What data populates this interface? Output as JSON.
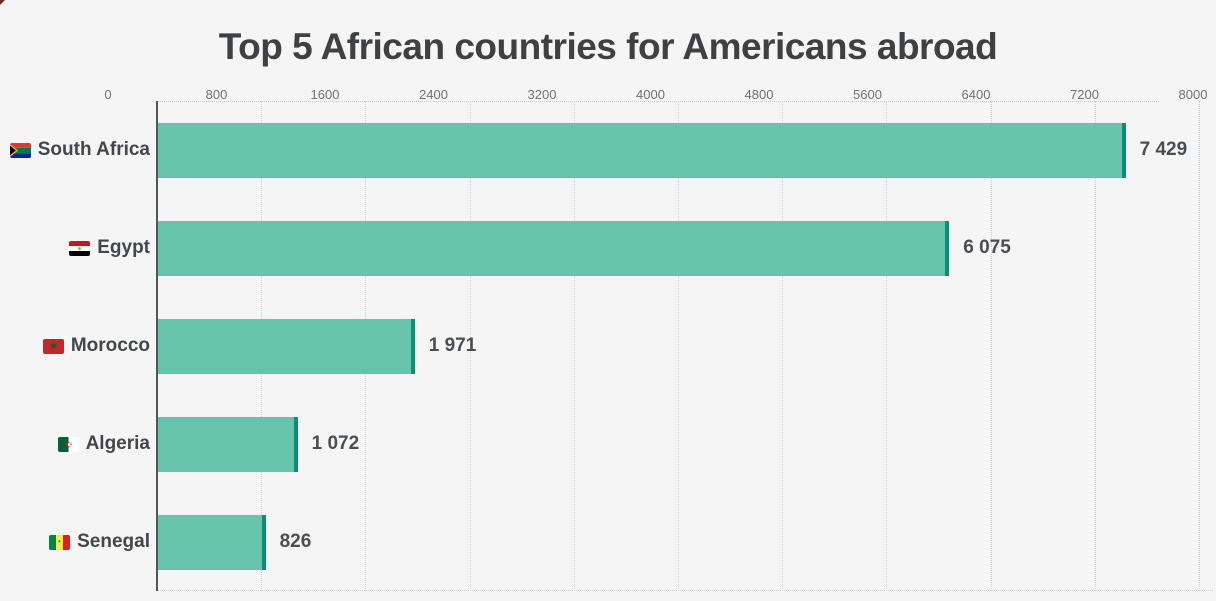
{
  "title": "Top 5 African countries for Americans abroad",
  "colors": {
    "background": "#f5f5f6",
    "bar_fill": "#67c4ac",
    "bar_edge": "#0e8e77",
    "title_text": "#3e4042",
    "category_text": "#43464a",
    "value_text": "#4a4d51",
    "tick_text": "#6f7275",
    "gridline": "#cecece",
    "axis_line": "#54575a"
  },
  "chart_data": {
    "type": "bar",
    "orientation": "horizontal",
    "title": "Top 5 African countries for Americans abroad",
    "categories": [
      "South Africa",
      "Egypt",
      "Morocco",
      "Algeria",
      "Senegal"
    ],
    "values": [
      7429,
      6075,
      1971,
      1072,
      826
    ],
    "value_labels": [
      "7 429",
      "6 075",
      "1 971",
      "1 072",
      "826"
    ],
    "flag_icons": [
      "south-africa-flag-icon",
      "egypt-flag-icon",
      "morocco-flag-icon",
      "algeria-flag-icon",
      "senegal-flag-icon"
    ],
    "x_ticks": [
      0,
      800,
      1600,
      2400,
      3200,
      4000,
      4800,
      5600,
      6400,
      7200,
      8000
    ],
    "xlim": [
      0,
      8000
    ],
    "xlabel": "",
    "ylabel": "",
    "grid": "dotted-vertical",
    "axis_labels_position": "top",
    "legend": "none"
  }
}
